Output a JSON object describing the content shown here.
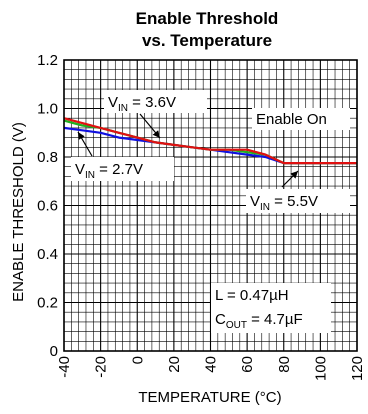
{
  "chart_data": {
    "type": "line",
    "title": [
      "Enable Threshold",
      "vs. Temperature"
    ],
    "xlabel": "TEMPERATURE (°C)",
    "ylabel": "ENABLE THRESHOLD (V)",
    "xlim": [
      -40,
      120
    ],
    "ylim": [
      0,
      1.2
    ],
    "x_ticks": [
      "-40",
      "-20",
      "0",
      "20",
      "40",
      "60",
      "80",
      "100",
      "120"
    ],
    "y_ticks": [
      "0",
      "0.2",
      "0.4",
      "0.6",
      "0.8",
      "1.0",
      "1.2"
    ],
    "grid": true,
    "series": [
      {
        "name": "V_IN = 2.7V",
        "color": "#1010e0",
        "x": [
          -40,
          -30,
          -20,
          -10,
          0,
          10,
          20,
          30,
          40,
          50,
          60,
          70,
          80,
          90,
          100,
          110,
          120
        ],
        "y": [
          0.92,
          0.91,
          0.9,
          0.88,
          0.87,
          0.86,
          0.85,
          0.84,
          0.83,
          0.82,
          0.81,
          0.8,
          0.775,
          0.775,
          0.775,
          0.775,
          0.775
        ]
      },
      {
        "name": "V_IN = 3.6V",
        "color": "#20b020",
        "x": [
          -40,
          -30,
          -20,
          -10,
          0,
          10,
          20,
          30,
          40,
          50,
          60,
          70,
          80,
          90,
          100,
          110,
          120
        ],
        "y": [
          0.95,
          0.93,
          0.92,
          0.9,
          0.88,
          0.86,
          0.85,
          0.84,
          0.83,
          0.83,
          0.82,
          0.81,
          0.775,
          0.775,
          0.775,
          0.775,
          0.775
        ]
      },
      {
        "name": "V_IN = 5.5V",
        "color": "#e01010",
        "x": [
          -40,
          -30,
          -20,
          -10,
          0,
          10,
          20,
          30,
          40,
          50,
          60,
          70,
          80,
          90,
          100,
          110,
          120
        ],
        "y": [
          0.96,
          0.94,
          0.92,
          0.9,
          0.88,
          0.86,
          0.85,
          0.84,
          0.83,
          0.83,
          0.83,
          0.81,
          0.775,
          0.775,
          0.775,
          0.775,
          0.775
        ]
      }
    ],
    "annotations": {
      "vin36": {
        "pre": "V",
        "sub": "IN",
        "post": " = 3.6V"
      },
      "vin27": {
        "pre": "V",
        "sub": "IN",
        "post": " = 2.7V"
      },
      "vin55": {
        "pre": "V",
        "sub": "IN",
        "post": " = 5.5V"
      },
      "enable_on": "Enable On",
      "inductor": "L = 0.47µH",
      "cout": {
        "pre": "C",
        "sub": "OUT",
        "post": " = 4.7µF"
      }
    }
  }
}
